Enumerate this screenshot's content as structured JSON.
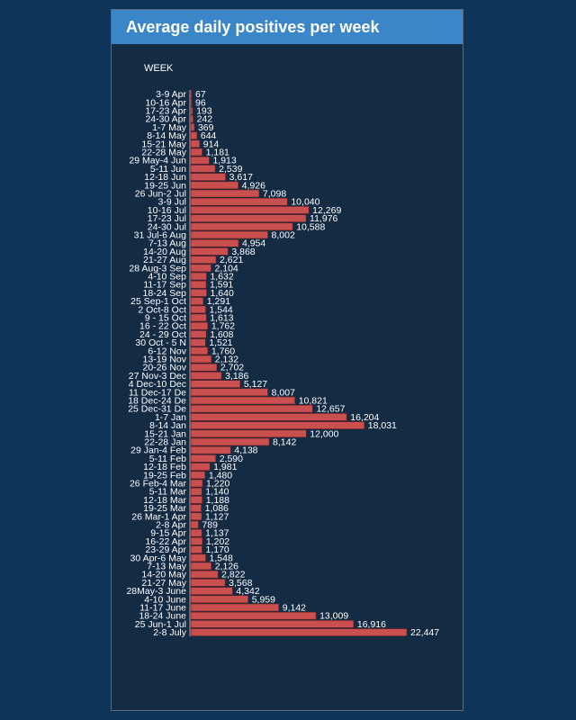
{
  "panel": {
    "title": "Average daily positives per week",
    "week_header": "WEEK"
  },
  "chart_data": {
    "type": "bar",
    "orientation": "horizontal",
    "title": "Average daily positives per week",
    "xlabel": "",
    "ylabel": "WEEK",
    "bar_color": "#c9504f",
    "categories": [
      "3-9 Apr",
      "10-16 Apr",
      "17-23 Apr",
      "24-30 Apr",
      "1-7 May",
      "8-14 May",
      "15-21 May",
      "22-28 May",
      "29 May-4 Jun",
      "5-11 Jun",
      "12-18 Jun",
      "19-25 Jun",
      "26 Jun-2 Jul",
      "3-9 Jul",
      "10-16 Jul",
      "17-23 Jul",
      "24-30 Jul",
      "31 Jul-6 Aug",
      "7-13 Aug",
      "14-20 Aug",
      "21-27 Aug",
      "28 Aug-3 Sep",
      "4-10 Sep",
      "11-17 Sep",
      "18-24 Sep",
      "25 Sep-1 Oct",
      "2 Oct-8 Oct",
      "9 - 15 Oct",
      "16 - 22 Oct",
      "24 - 29 Oct",
      "30 Oct - 5 N",
      "6-12 Nov",
      "13-19 Nov",
      "20-26 Nov",
      "27 Nov-3 Dec",
      "4 Dec-10 Dec",
      "11 Dec-17 De",
      "18 Dec-24 De",
      "25 Dec-31 De",
      "1-7 Jan",
      "8-14 Jan",
      "15-21 Jan",
      "22-28 Jan",
      "29 Jan-4 Feb",
      "5-11 Feb",
      "12-18 Feb",
      "19-25 Feb",
      "26 Feb-4 Mar",
      "5-11 Mar",
      "12-18 Mar",
      "19-25 Mar",
      "26 Mar-1 Apr",
      "2-8 Apr",
      "9-15 Apr",
      "16-22 Apr",
      "23-29 Apr",
      "30 Apr-6 May",
      "7-13 May",
      "14-20 May",
      "21-27 May",
      "28May-3 June",
      "4-10 June",
      "11-17 June",
      "18-24 June",
      "25 Jun-1 Jul",
      "2-8 July"
    ],
    "values": [
      67,
      96,
      193,
      242,
      369,
      644,
      914,
      1181,
      1913,
      2539,
      3617,
      4926,
      7098,
      10040,
      12269,
      11976,
      10588,
      8002,
      4954,
      3868,
      2621,
      2104,
      1632,
      1591,
      1640,
      1291,
      1544,
      1613,
      1762,
      1608,
      1521,
      1760,
      2132,
      2702,
      3186,
      5127,
      8007,
      10821,
      12657,
      16204,
      18031,
      12000,
      8142,
      4138,
      2590,
      1981,
      1480,
      1220,
      1140,
      1188,
      1086,
      1127,
      789,
      1137,
      1202,
      1170,
      1548,
      2126,
      2822,
      3568,
      4342,
      5959,
      9142,
      13009,
      16916,
      22447
    ],
    "value_labels": [
      "67",
      "96",
      "193",
      "242",
      "369",
      "644",
      "914",
      "1,181",
      "1,913",
      "2,539",
      "3,617",
      "4,926",
      "7,098",
      "10,040",
      "12,269",
      "11,976",
      "10,588",
      "8,002",
      "4,954",
      "3,868",
      "2,621",
      "2,104",
      "1,632",
      "1,591",
      "1,640",
      "1,291",
      "1,544",
      "1,613",
      "1,762",
      "1,608",
      "1,521",
      "1,760",
      "2,132",
      "2,702",
      "3,186",
      "5,127",
      "8,007",
      "10,821",
      "12,657",
      "16,204",
      "18,031",
      "12,000",
      "8,142",
      "4,138",
      "2,590",
      "1,981",
      "1,480",
      "1,220",
      "1,140",
      "1,188",
      "1,086",
      "1,127",
      "789",
      "1,137",
      "1,202",
      "1,170",
      "1,548",
      "2,126",
      "2,822",
      "3,568",
      "4,342",
      "5,959",
      "9,142",
      "13,009",
      "16,916",
      "22,447"
    ]
  }
}
